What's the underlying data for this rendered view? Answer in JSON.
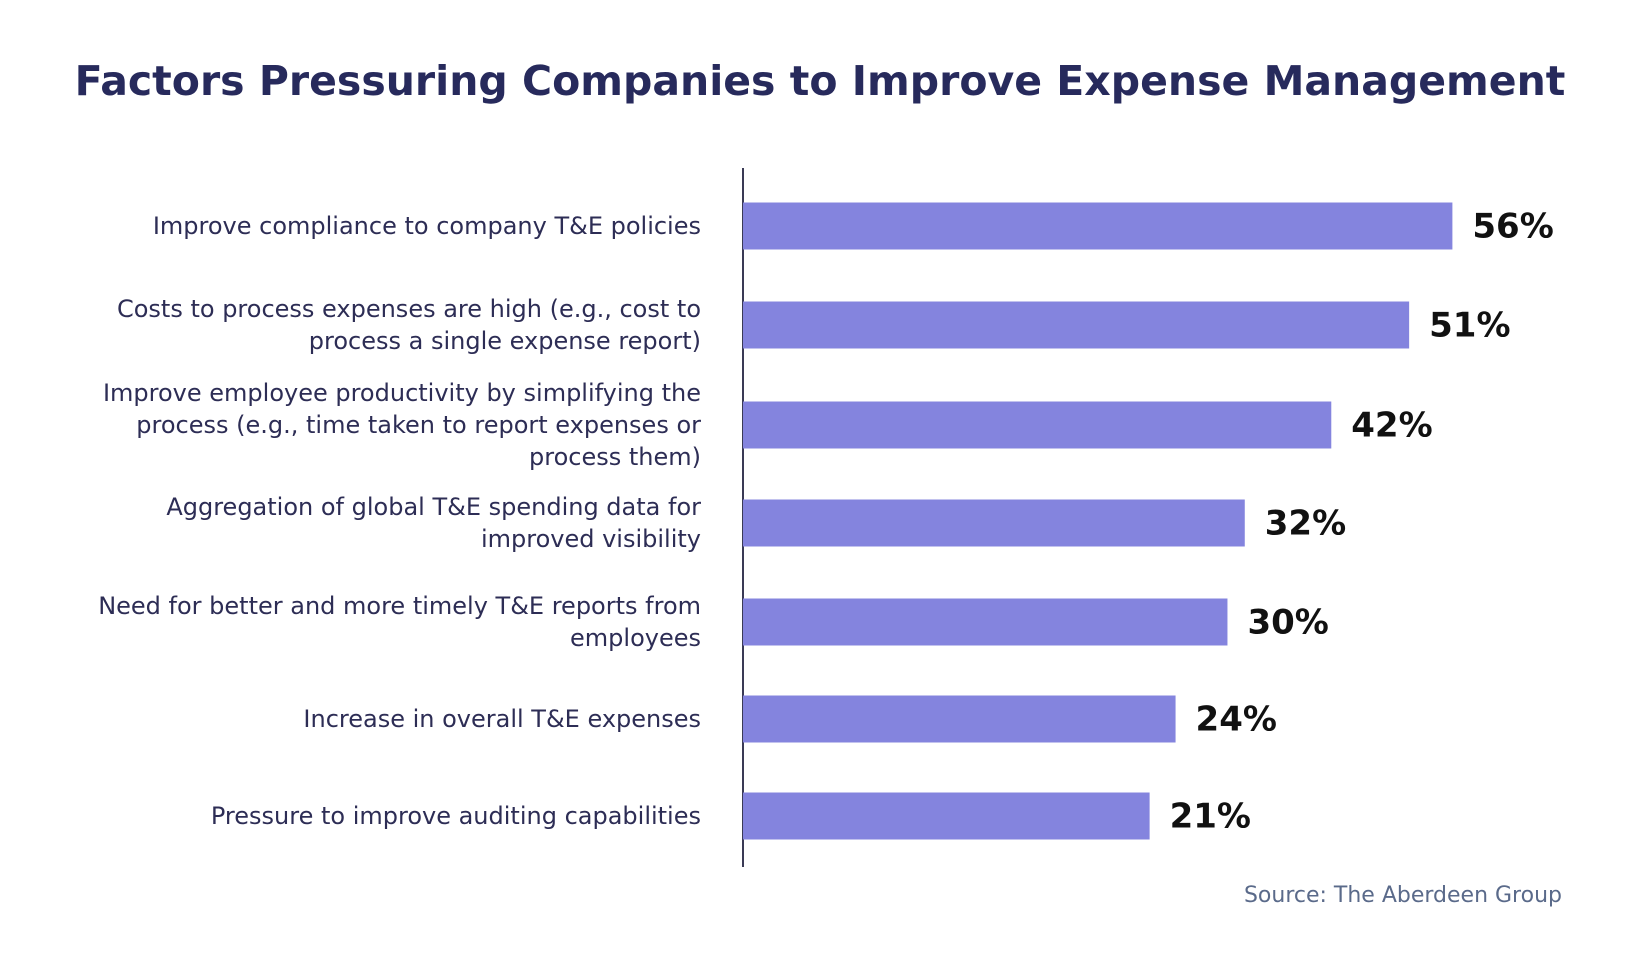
{
  "chart_data": {
    "type": "hbar",
    "title": "Factors Pressuring Companies to Improve Expense Management",
    "categories": [
      "Improve compliance to company T&E policies",
      "Costs to process expenses are high (e.g., cost to process a single expense report)",
      "Improve employee productivity by simplifying the process (e.g., time taken to report expenses or process them)",
      "Aggregation of global T&E spending data for improved visibility",
      "Need for better and more timely T&E reports from employees",
      "Increase in overall T&E expenses",
      "Pressure to improve auditing capabilities"
    ],
    "values": [
      56,
      51,
      42,
      32,
      30,
      24,
      21
    ],
    "value_labels": [
      "56%",
      "51%",
      "42%",
      "32%",
      "30%",
      "24%",
      "21%"
    ],
    "color": "#8484de",
    "xlim": [
      -26,
      60
    ],
    "source": "Source: The Aberdeen Group"
  }
}
